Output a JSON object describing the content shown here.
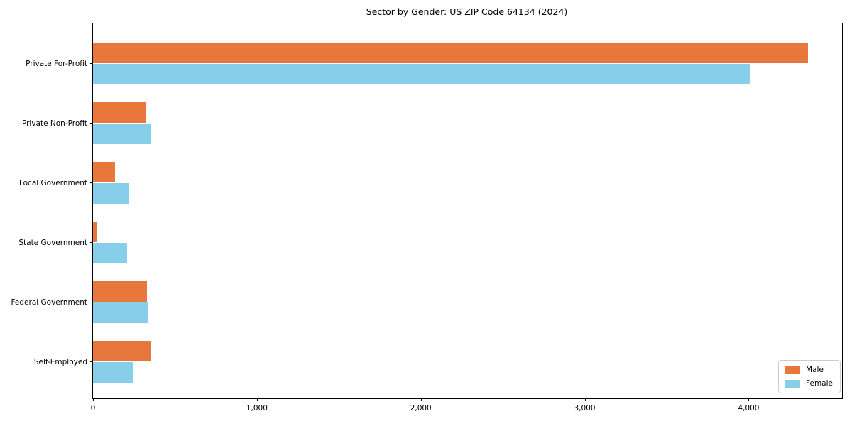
{
  "chart_data": {
    "type": "bar",
    "orientation": "horizontal",
    "title": "Sector by Gender: US ZIP Code 64134 (2024)",
    "categories": [
      "Private For-Profit",
      "Private Non-Profit",
      "Local Government",
      "State Government",
      "Federal Government",
      "Self-Employed"
    ],
    "series": [
      {
        "name": "Male",
        "color": "#e8773b",
        "values": [
          4360,
          325,
          135,
          20,
          330,
          350
        ]
      },
      {
        "name": "Female",
        "color": "#87ceeb",
        "values": [
          4010,
          355,
          220,
          210,
          335,
          245
        ]
      }
    ],
    "xlabel": "",
    "ylabel": "",
    "xlim": [
      0,
      4570
    ],
    "xticks": [
      0,
      1000,
      2000,
      3000,
      4000
    ],
    "xtick_labels": [
      "0",
      "1,000",
      "2,000",
      "3,000",
      "4,000"
    ],
    "grid": false,
    "legend": {
      "position": "lower right",
      "entries": [
        "Male",
        "Female"
      ]
    },
    "colors": {
      "axis": "#000000",
      "text": "#000000",
      "legend_border": "#cccccc",
      "background": "#ffffff"
    }
  }
}
